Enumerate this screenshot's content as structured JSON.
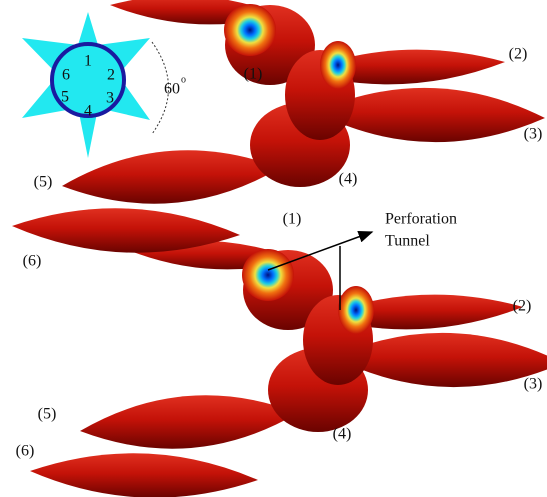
{
  "inset": {
    "numbers": [
      "1",
      "2",
      "3",
      "4",
      "5",
      "6"
    ],
    "angle": "60",
    "angle_unit": "o"
  },
  "upper_labels": [
    "(1)",
    "(2)",
    "(3)",
    "(4)",
    "(5)",
    "(6)"
  ],
  "lower_labels": [
    "(1)",
    "(2)",
    "(3)",
    "(4)",
    "(5)",
    "(6)"
  ],
  "annotation": {
    "line1": "Perforation",
    "line2": "Tunnel"
  }
}
